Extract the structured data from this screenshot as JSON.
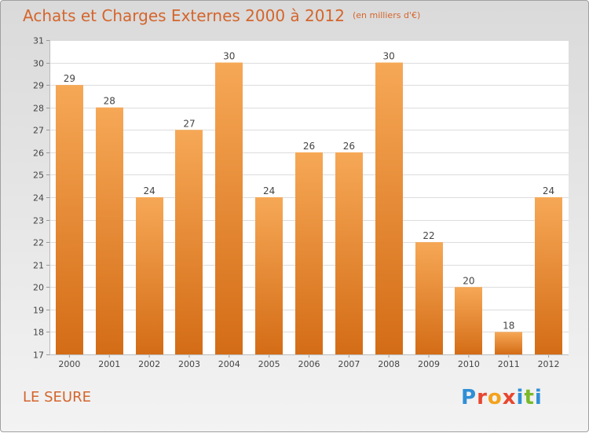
{
  "title": "Achats et Charges Externes 2000 à 2012",
  "unit": "(en milliers d'€)",
  "place": "LE SEURE",
  "logo": {
    "text": "Proxiti",
    "colors": [
      "#2f8fd6",
      "#e8462f",
      "#f4a21c",
      "#e8462f",
      "#2f8fd6",
      "#7ab929",
      "#2f8fd6"
    ]
  },
  "colors": {
    "title": "#d4652c",
    "bar_top": "#f6a856",
    "bar_bottom": "#d46c16",
    "grid": "#dcdcdc"
  },
  "chart_data": {
    "type": "bar",
    "categories": [
      "2000",
      "2001",
      "2002",
      "2003",
      "2004",
      "2005",
      "2006",
      "2007",
      "2008",
      "2009",
      "2010",
      "2011",
      "2012"
    ],
    "values": [
      29,
      28,
      24,
      27,
      30,
      24,
      26,
      26,
      30,
      22,
      20,
      18,
      24
    ],
    "y_ticks": [
      17,
      18,
      19,
      20,
      21,
      22,
      23,
      24,
      25,
      26,
      27,
      28,
      29,
      30,
      31
    ],
    "ylim": [
      17,
      31
    ],
    "title": "Achats et Charges Externes 2000 à 2012",
    "xlabel": "",
    "ylabel": "",
    "grid": true
  }
}
